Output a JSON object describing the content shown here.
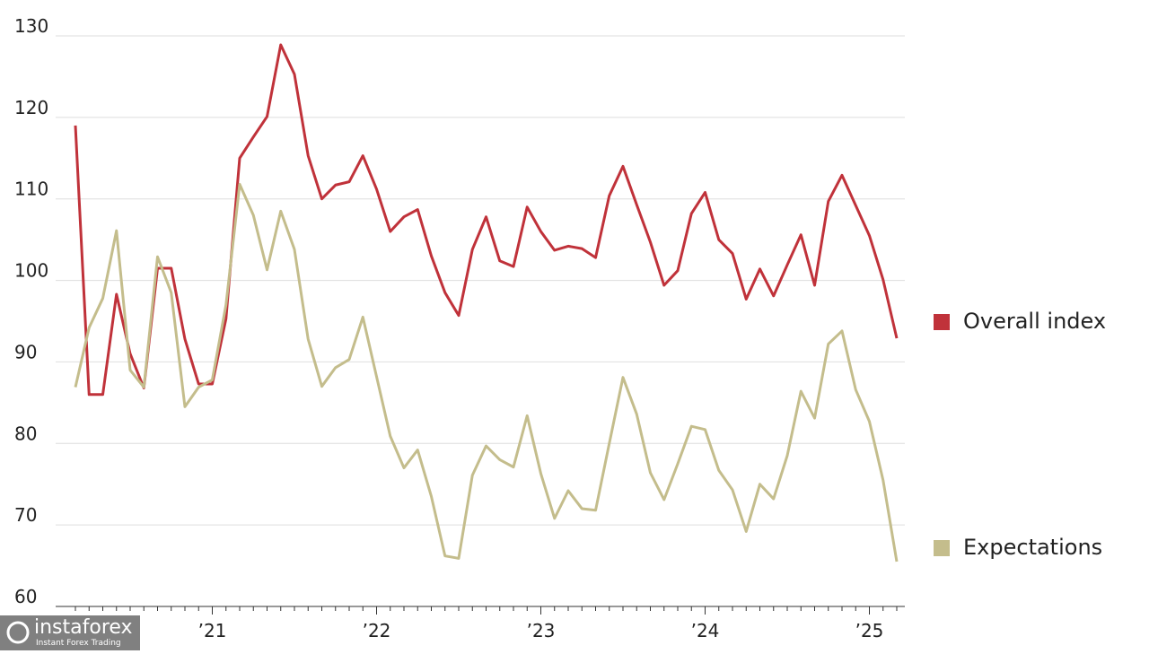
{
  "chart_data": {
    "type": "line",
    "categories": [
      null,
      null,
      null,
      null,
      null,
      null,
      null,
      null,
      null,
      null,
      "’21",
      null,
      null,
      null,
      null,
      null,
      null,
      null,
      null,
      null,
      null,
      null,
      "’22",
      null,
      null,
      null,
      null,
      null,
      null,
      null,
      null,
      null,
      null,
      null,
      "’23",
      null,
      null,
      null,
      null,
      null,
      null,
      null,
      null,
      null,
      null,
      null,
      "’24",
      null,
      null,
      null,
      null,
      null,
      null,
      null,
      null,
      null,
      null,
      null,
      "’25",
      null,
      null
    ],
    "series": [
      {
        "name": "Overall index",
        "color": "#c0323a",
        "values": [
          119,
          86,
          86,
          98.3,
          91,
          86.8,
          101.5,
          101.5,
          92.8,
          87.3,
          87.3,
          95.3,
          115,
          117.6,
          120.1,
          128.9,
          125.3,
          115.3,
          110,
          111.7,
          112.1,
          115.3,
          111.2,
          106,
          107.8,
          108.7,
          103,
          98.5,
          95.7,
          103.8,
          107.8,
          102.4,
          101.7,
          109,
          106,
          103.7,
          104.2,
          103.9,
          102.8,
          110.4,
          114,
          109.3,
          104.7,
          99.4,
          101.2,
          108.2,
          110.8,
          105,
          103.3,
          97.7,
          101.4,
          98.1,
          101.9,
          105.6,
          99.4,
          109.7,
          112.9,
          109.2,
          105.5,
          100.1,
          92.9
        ]
      },
      {
        "name": "Expectations",
        "color": "#c4bd8c",
        "values": [
          86.9,
          94.2,
          97.8,
          106.1,
          89,
          86.9,
          102.9,
          98.5,
          84.5,
          86.9,
          87.8,
          97,
          111.8,
          108,
          101.3,
          108.5,
          103.8,
          92.8,
          87,
          89.3,
          90.3,
          95.5,
          88.2,
          80.9,
          77,
          79.2,
          73.5,
          66.2,
          65.9,
          76.1,
          79.7,
          78,
          77.1,
          83.4,
          76.3,
          70.8,
          74.2,
          72,
          71.8,
          80,
          88.1,
          83.6,
          76.4,
          73.1,
          77.5,
          82.1,
          81.7,
          76.7,
          74.3,
          69.2,
          75,
          73.2,
          78.5,
          86.4,
          83.1,
          92.2,
          93.8,
          86.6,
          82.7,
          75.5,
          65.5
        ]
      }
    ],
    "ylim": [
      60,
      130
    ],
    "yticks": [
      60,
      70,
      80,
      90,
      100,
      110,
      120,
      130
    ],
    "grid": true,
    "legend": "right"
  },
  "watermark": {
    "brand": "instaforex",
    "tagline": "Instant Forex Trading"
  }
}
